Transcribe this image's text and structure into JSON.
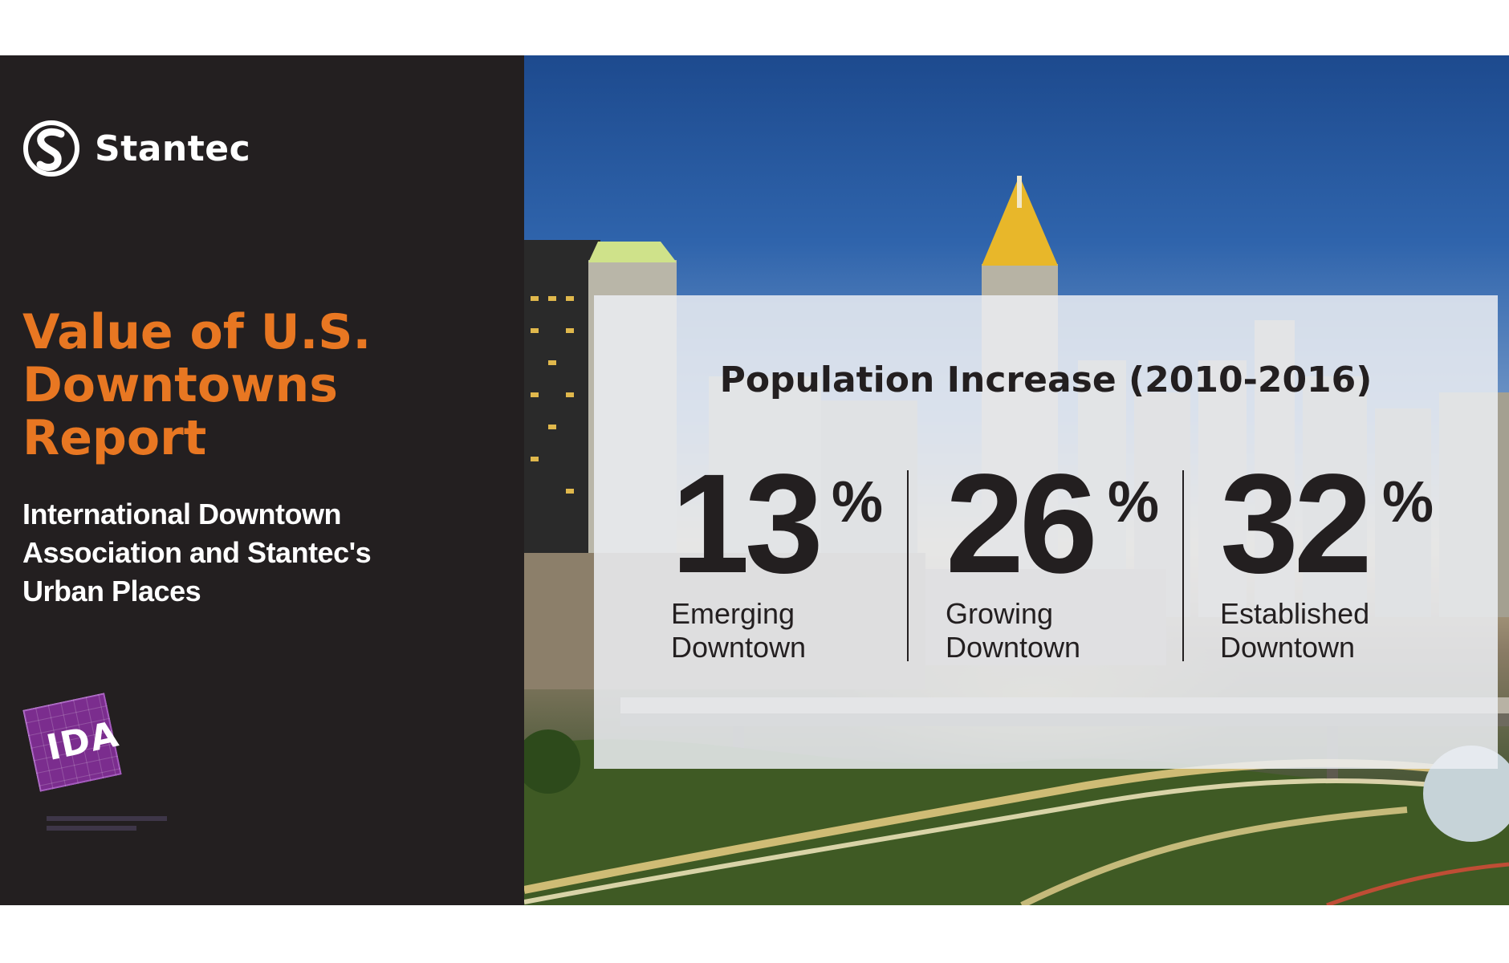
{
  "brand": {
    "name": "Stantec",
    "logo_icon": "stantec-s-logo-icon"
  },
  "report": {
    "title": "Value of U.S. Downtowns Report",
    "subtitle": "International Downtown Association and Stantec's Urban Places"
  },
  "partner": {
    "logo_text": "IDA",
    "logo_icon": "ida-logo-icon"
  },
  "stats_panel": {
    "title": "Population Increase (2010-2016)",
    "stats": [
      {
        "number": "13",
        "unit": "%",
        "label_line1": "Emerging",
        "label_line2": "Downtown"
      },
      {
        "number": "26",
        "unit": "%",
        "label_line1": "Growing",
        "label_line2": "Downtown"
      },
      {
        "number": "32",
        "unit": "%",
        "label_line1": "Established",
        "label_line2": "Downtown"
      }
    ]
  },
  "colors": {
    "accent": "#e87722",
    "panel_dark": "#231f20",
    "ida_purple": "#7b2d8e"
  },
  "background_image": "city-skyline-photo"
}
